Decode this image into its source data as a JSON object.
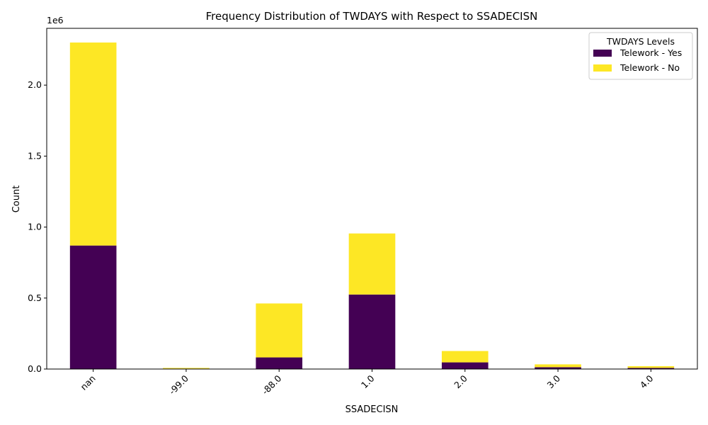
{
  "chart_data": {
    "type": "bar",
    "stacked": true,
    "title": "Frequency Distribution of TWDAYS with Respect to SSADECISN",
    "xlabel": "SSADECISN",
    "ylabel": "Count",
    "y_offset_label": "1e6",
    "categories": [
      "nan",
      "-99.0",
      "-88.0",
      "1.0",
      "2.0",
      "3.0",
      "4.0"
    ],
    "ylim": [
      0,
      2400000
    ],
    "yticks": [
      0,
      500000,
      1000000,
      1500000,
      2000000
    ],
    "ytick_labels": [
      "0.0",
      "0.5",
      "1.0",
      "1.5",
      "2.0"
    ],
    "series": [
      {
        "name": "Telework - Yes",
        "color": "#440154",
        "values": [
          870000,
          3000,
          82000,
          525000,
          47000,
          13000,
          8000
        ]
      },
      {
        "name": "Telework - No",
        "color": "#fde725",
        "values": [
          1430000,
          5000,
          380000,
          430000,
          80000,
          20000,
          12000
        ]
      }
    ],
    "legend": {
      "title": "TWDAYS Levels",
      "placement": "top-right"
    },
    "grid": false
  }
}
